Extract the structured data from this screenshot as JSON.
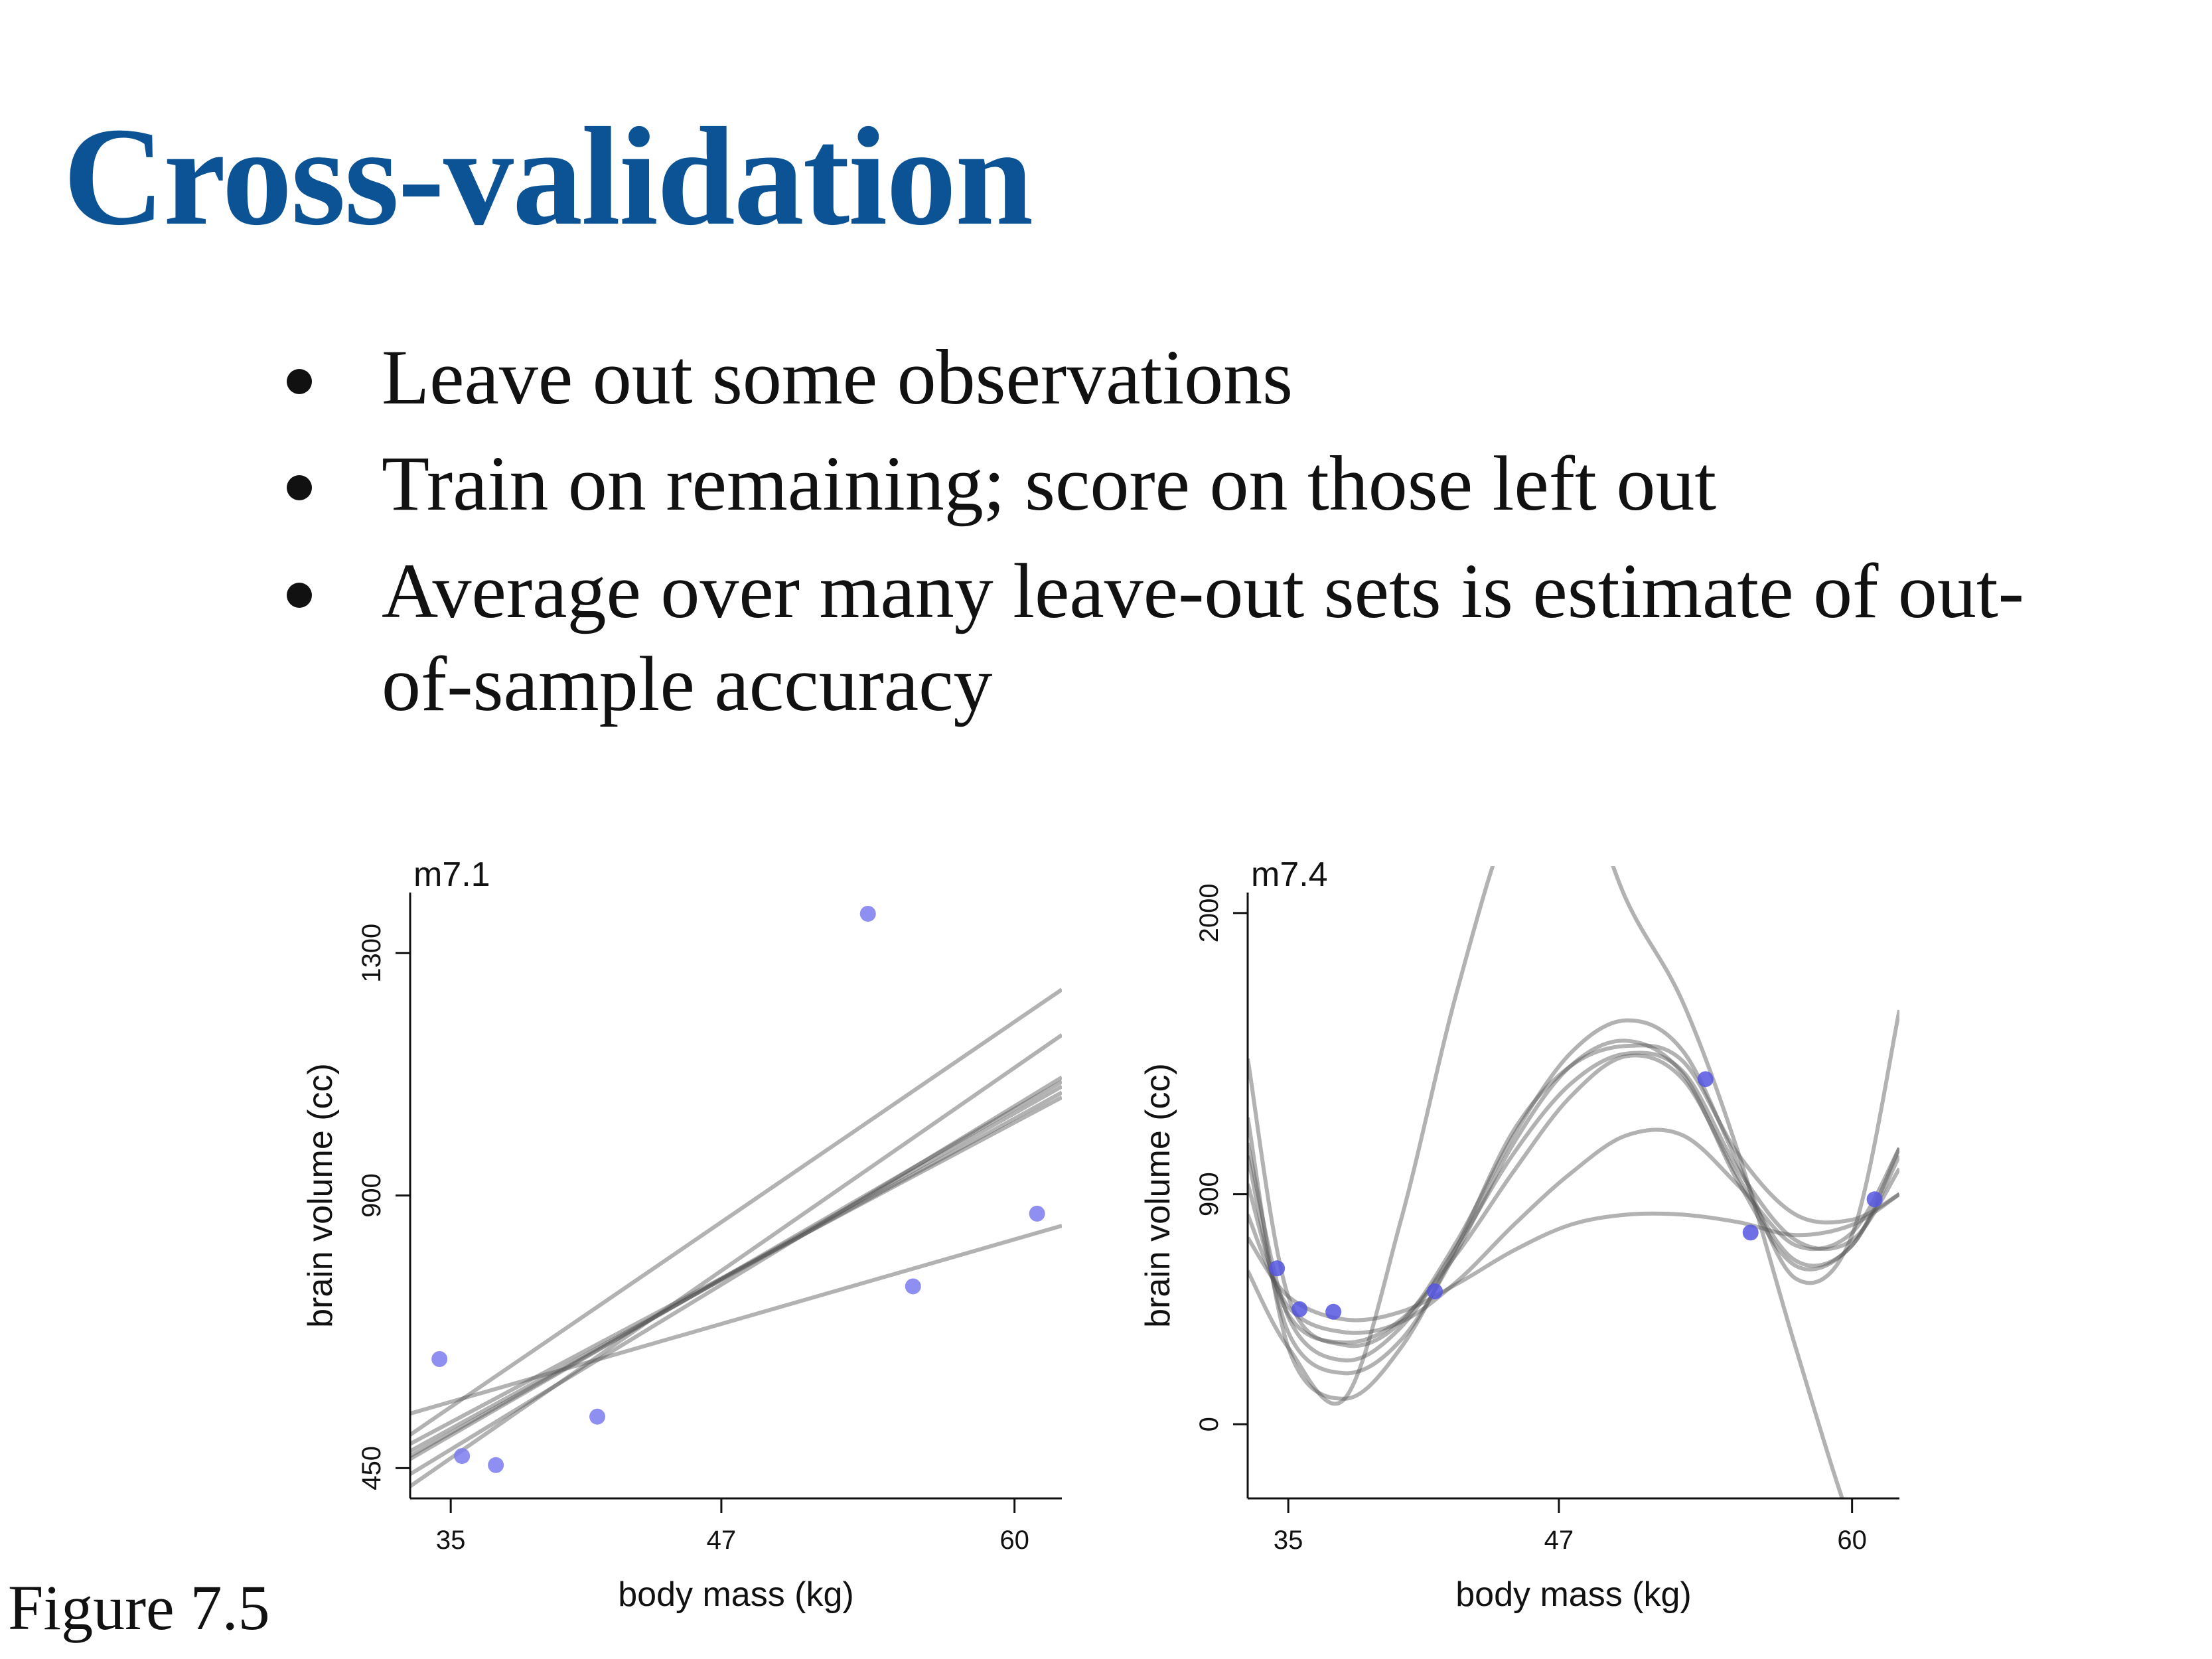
{
  "slide": {
    "title": "Cross-validation",
    "bullets": [
      "Leave out some observations",
      "Train on remaining; score on those left out",
      "Average over many leave-out sets is estimate of out-",
      "of-sample accuracy"
    ],
    "figure_caption": "Figure 7.5"
  },
  "chart_data": [
    {
      "type": "scatter",
      "panel_label": "m7.1",
      "xlabel": "body mass (kg)",
      "ylabel": "brain volume (cc)",
      "xticks": [
        35,
        47,
        60
      ],
      "yticks": [
        450,
        900,
        1300
      ],
      "xlim": [
        33.2,
        62.1
      ],
      "ylim": [
        400,
        1400
      ],
      "points": [
        {
          "x": 34.5,
          "y": 630
        },
        {
          "x": 35.5,
          "y": 470
        },
        {
          "x": 37.0,
          "y": 455
        },
        {
          "x": 41.5,
          "y": 535
        },
        {
          "x": 53.5,
          "y": 1365
        },
        {
          "x": 55.5,
          "y": 750
        },
        {
          "x": 61.0,
          "y": 870
        }
      ],
      "point_color": "#7b7bef",
      "line_color": "#9a9a9a",
      "fit_lines": [
        {
          "x0": 33.2,
          "y0": 505,
          "x1": 62.1,
          "y1": 1240
        },
        {
          "x0": 33.2,
          "y0": 420,
          "x1": 62.1,
          "y1": 1165
        },
        {
          "x0": 33.2,
          "y0": 440,
          "x1": 62.1,
          "y1": 1095
        },
        {
          "x0": 33.2,
          "y0": 465,
          "x1": 62.1,
          "y1": 1088
        },
        {
          "x0": 33.2,
          "y0": 470,
          "x1": 62.1,
          "y1": 1080
        },
        {
          "x0": 33.2,
          "y0": 478,
          "x1": 62.1,
          "y1": 1070
        },
        {
          "x0": 33.2,
          "y0": 490,
          "x1": 62.1,
          "y1": 1062
        },
        {
          "x0": 33.2,
          "y0": 540,
          "x1": 62.1,
          "y1": 850
        }
      ]
    },
    {
      "type": "scatter",
      "panel_label": "m7.4",
      "xlabel": "body mass (kg)",
      "ylabel": "brain volume (cc)",
      "xticks": [
        35,
        47,
        60
      ],
      "yticks": [
        0,
        900,
        2000
      ],
      "xlim": [
        33.2,
        62.1
      ],
      "ylim": [
        -290,
        2080
      ],
      "points": [
        {
          "x": 34.5,
          "y": 610
        },
        {
          "x": 35.5,
          "y": 450
        },
        {
          "x": 37.0,
          "y": 440
        },
        {
          "x": 41.5,
          "y": 520
        },
        {
          "x": 53.5,
          "y": 1350
        },
        {
          "x": 55.5,
          "y": 750
        },
        {
          "x": 61.0,
          "y": 880
        }
      ],
      "point_color": "#5555e0",
      "line_color": "#9a9a9a",
      "curve_samples_x": [
        33.2,
        35,
        37.5,
        40,
        42.5,
        45,
        47.5,
        50,
        52.5,
        55,
        57.5,
        60,
        62.1
      ],
      "fit_curves": [
        [
          1430,
          500,
          310,
          400,
          720,
          1130,
          1450,
          1580,
          1460,
          1010,
          570,
          740,
          1620
        ],
        [
          940,
          430,
          320,
          410,
          670,
          990,
          1280,
          1440,
          1350,
          960,
          640,
          700,
          1080
        ],
        [
          820,
          460,
          360,
          400,
          560,
          780,
          980,
          1130,
          1130,
          930,
          700,
          750,
          1080
        ],
        [
          730,
          500,
          410,
          440,
          550,
          680,
          780,
          820,
          820,
          790,
          740,
          780,
          900
        ],
        [
          1100,
          420,
          250,
          380,
          700,
          1060,
          1330,
          1450,
          1380,
          990,
          720,
          720,
          1000
        ],
        [
          1050,
          360,
          200,
          330,
          680,
          1100,
          1400,
          1500,
          1370,
          940,
          620,
          700,
          1050
        ],
        [
          1200,
          300,
          100,
          300,
          700,
          1150,
          1400,
          1480,
          1420,
          1050,
          820,
          800,
          900
        ],
        [
          600,
          300,
          100,
          800,
          1700,
          2400,
          2600,
          2600,
          2600,
          2600,
          2600,
          2600,
          2600
        ],
        [
          2600,
          2600,
          2600,
          2600,
          2600,
          2600,
          2600,
          2050,
          1650,
          1050,
          300,
          -400,
          -800
        ]
      ]
    }
  ]
}
